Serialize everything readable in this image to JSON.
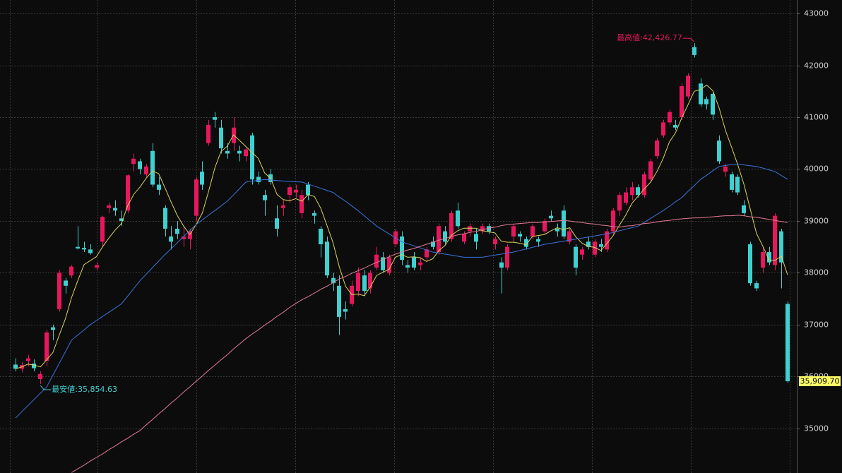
{
  "chart_data": {
    "type": "candlestick",
    "up_color": "#e8175d",
    "down_color": "#3fd0d0",
    "grid": true,
    "ylim": [
      34140,
      43260
    ],
    "yticks": [
      35000,
      36000,
      37000,
      38000,
      39000,
      40000,
      41000,
      42000,
      43000
    ],
    "open": [
      36230,
      36150,
      36300,
      36250,
      35950,
      36300,
      36950,
      37300,
      37850,
      37950,
      38500,
      38480,
      38450,
      38100,
      38600,
      39250,
      39250,
      39050,
      39200,
      40100,
      40150,
      39900,
      40350,
      39700,
      39250,
      38700,
      38850,
      38650,
      38650,
      39100,
      39950,
      40500,
      41000,
      40800,
      40350,
      40500,
      40350,
      40250,
      40650,
      39850,
      39500,
      39900,
      39050,
      39250,
      39500,
      39550,
      39150,
      39700,
      39150,
      38850,
      38600,
      37900,
      37750,
      37300,
      37400,
      37650,
      37950,
      37700,
      38100,
      38300,
      38000,
      38550,
      38700,
      38150,
      38300,
      38150,
      38300,
      38600,
      38400,
      38800,
      38650,
      39200,
      38600,
      38800,
      38750,
      38800,
      38900,
      38550,
      38200,
      38100,
      38700,
      38750,
      38650,
      38700,
      38650,
      38800,
      39100,
      38850,
      39200,
      38600,
      38500,
      38350,
      38600,
      38350,
      38550,
      38450,
      38800,
      39200,
      39350,
      39500,
      39650,
      39500,
      39800,
      40250,
      40650,
      40900,
      40850,
      41000,
      41400,
      42350,
      41650,
      41350,
      41450,
      40550,
      39950,
      39900,
      39850,
      39300,
      38550,
      37800,
      38100,
      38400,
      38150,
      38800,
      37400
    ],
    "high": [
      36350,
      36280,
      36420,
      36330,
      36100,
      36900,
      37000,
      38050,
      37900,
      38150,
      38900,
      38600,
      38550,
      38200,
      39100,
      39350,
      39400,
      39200,
      39900,
      40300,
      40200,
      40100,
      40500,
      39850,
      39300,
      38900,
      39000,
      38900,
      38850,
      39850,
      40150,
      40950,
      41100,
      40950,
      40500,
      41000,
      40450,
      40400,
      40700,
      39950,
      39600,
      40000,
      39300,
      39400,
      39700,
      39700,
      39600,
      39750,
      39200,
      38900,
      38700,
      38000,
      37950,
      37450,
      37850,
      38100,
      38050,
      38050,
      38500,
      38400,
      38350,
      38850,
      38800,
      38250,
      38400,
      38300,
      38500,
      38700,
      38950,
      38900,
      39200,
      39350,
      38800,
      38950,
      38850,
      38950,
      38950,
      38700,
      38300,
      38550,
      38950,
      38800,
      38700,
      38950,
      38700,
      39050,
      39200,
      38950,
      39300,
      38850,
      38550,
      38500,
      38700,
      38650,
      38650,
      38850,
      39250,
      39550,
      39650,
      39750,
      39700,
      39950,
      40200,
      40600,
      40950,
      41150,
      40950,
      41650,
      41850,
      42426.77,
      41750,
      41400,
      41500,
      40650,
      40100,
      39950,
      39900,
      39400,
      38600,
      37850,
      38500,
      38500,
      39150,
      38850,
      37450
    ],
    "low": [
      36100,
      36080,
      36200,
      36100,
      35854.63,
      36200,
      36700,
      37250,
      37600,
      37900,
      38450,
      38400,
      38350,
      38050,
      38500,
      39150,
      39100,
      38900,
      39150,
      39950,
      39900,
      39850,
      39650,
      39500,
      38700,
      38450,
      38650,
      38500,
      38450,
      39000,
      39600,
      40450,
      40800,
      40300,
      40200,
      40350,
      40150,
      40150,
      39700,
      39700,
      39100,
      39700,
      38700,
      39100,
      39350,
      39450,
      39050,
      39400,
      38950,
      38300,
      37900,
      37650,
      36800,
      37100,
      37350,
      37550,
      37550,
      37600,
      38050,
      38000,
      37950,
      38500,
      38150,
      38000,
      38050,
      38050,
      38200,
      38450,
      38350,
      38550,
      38600,
      38850,
      38550,
      38700,
      38450,
      38750,
      38750,
      38450,
      37600,
      38050,
      38600,
      38600,
      38450,
      38650,
      38500,
      38750,
      39000,
      38700,
      38650,
      38550,
      37950,
      38250,
      38450,
      38300,
      38400,
      38400,
      38750,
      39100,
      39300,
      39400,
      39450,
      39450,
      39750,
      40200,
      40600,
      40850,
      40750,
      40950,
      41350,
      42150,
      41200,
      41150,
      40950,
      40100,
      39850,
      39550,
      39500,
      39100,
      37750,
      37650,
      38000,
      38150,
      38050,
      37700,
      35880
    ],
    "close": [
      36150,
      36220,
      36350,
      36160,
      36050,
      36850,
      36900,
      38000,
      37750,
      38120,
      38470,
      38450,
      38380,
      38150,
      39080,
      39300,
      39200,
      39000,
      39880,
      40200,
      40000,
      40050,
      39700,
      39600,
      38850,
      38600,
      38750,
      38700,
      38800,
      39800,
      39700,
      40850,
      40950,
      40400,
      40300,
      40800,
      40300,
      40380,
      39800,
      39750,
      39400,
      39750,
      38850,
      39300,
      39650,
      39600,
      39500,
      39500,
      39100,
      38550,
      37950,
      37800,
      37150,
      37250,
      37750,
      38000,
      37650,
      38000,
      38350,
      38050,
      38300,
      38800,
      38250,
      38100,
      38100,
      38200,
      38450,
      38500,
      38900,
      38600,
      39150,
      38900,
      38750,
      38900,
      38600,
      38900,
      38800,
      38650,
      38100,
      38500,
      38900,
      38700,
      38500,
      38900,
      38600,
      39000,
      39050,
      38800,
      38700,
      38800,
      38100,
      38450,
      38500,
      38600,
      38500,
      38800,
      39200,
      39500,
      39550,
      39650,
      39500,
      39900,
      40150,
      40550,
      40900,
      41100,
      40800,
      41600,
      41800,
      42200,
      41250,
      41250,
      41050,
      40150,
      40050,
      39600,
      39550,
      39150,
      37800,
      37700,
      38400,
      38200,
      39100,
      38200,
      35909.7
    ],
    "moving_averages": [
      {
        "color": "#d9d35a",
        "values": [
          36150,
          36185,
          36240,
          36220,
          36186,
          36326,
          36462,
          36792,
          37110,
          37524,
          37848,
          38158,
          38234,
          38314,
          38506,
          38672,
          38822,
          38946,
          39292,
          39516,
          39656,
          39826,
          39966,
          39910,
          39640,
          39360,
          39100,
          38900,
          38740,
          38930,
          39150,
          39570,
          40020,
          40340,
          40440,
          40660,
          40550,
          40436,
          40316,
          40206,
          39926,
          39816,
          39510,
          39410,
          39390,
          39430,
          39380,
          39510,
          39470,
          39250,
          38920,
          38580,
          38110,
          37740,
          37580,
          37590,
          37560,
          37730,
          37950,
          38010,
          38070,
          38300,
          38350,
          38300,
          38310,
          38290,
          38220,
          38270,
          38430,
          38530,
          38720,
          38810,
          38860,
          38860,
          38860,
          38810,
          38790,
          38770,
          38610,
          38590,
          38590,
          38570,
          38540,
          38700,
          38720,
          38740,
          38810,
          38870,
          38830,
          38870,
          38690,
          38570,
          38510,
          38490,
          38430,
          38570,
          38720,
          38920,
          39110,
          39340,
          39480,
          39620,
          39750,
          39950,
          40200,
          40520,
          40700,
          40990,
          41240,
          41500,
          41530,
          41620,
          41510,
          41180,
          40750,
          40420,
          40080,
          39700,
          39230,
          38760,
          38520,
          38250,
          38240,
          38320,
          37960
        ]
      },
      {
        "color": "#3d72dc",
        "values": [
          35200,
          35320,
          35440,
          35560,
          35680,
          35800,
          36025,
          36250,
          36475,
          36700,
          36800,
          36900,
          37000,
          37080,
          37160,
          37240,
          37320,
          37400,
          37550,
          37700,
          37850,
          37975,
          38100,
          38225,
          38350,
          38465,
          38580,
          38700,
          38815,
          38930,
          39020,
          39110,
          39200,
          39290,
          39380,
          39500,
          39625,
          39750,
          39770,
          39780,
          39800,
          39790,
          39780,
          39770,
          39760,
          39755,
          39750,
          39710,
          39670,
          39630,
          39590,
          39550,
          39460,
          39380,
          39290,
          39200,
          39100,
          39000,
          38900,
          38825,
          38750,
          38675,
          38600,
          38560,
          38520,
          38480,
          38440,
          38400,
          38380,
          38360,
          38340,
          38320,
          38300,
          38300,
          38300,
          38300,
          38320,
          38340,
          38360,
          38380,
          38400,
          38430,
          38460,
          38490,
          38520,
          38550,
          38570,
          38590,
          38610,
          38630,
          38650,
          38670,
          38690,
          38710,
          38730,
          38750,
          38780,
          38810,
          38840,
          38870,
          38900,
          38975,
          39050,
          39125,
          39200,
          39280,
          39370,
          39450,
          39570,
          39680,
          39800,
          39880,
          39970,
          40050,
          40070,
          40085,
          40100,
          40080,
          40065,
          40050,
          40020,
          39985,
          39950,
          39875,
          39800
        ]
      },
      {
        "color": "#e57a94",
        "values": [
          null,
          null,
          null,
          null,
          null,
          null,
          null,
          null,
          null,
          34150,
          34220,
          34290,
          34370,
          34440,
          34510,
          34590,
          34660,
          34740,
          34810,
          34890,
          34960,
          35070,
          35170,
          35280,
          35380,
          35490,
          35590,
          35700,
          35800,
          35910,
          36010,
          36120,
          36220,
          36320,
          36420,
          36530,
          36630,
          36730,
          36820,
          36900,
          36990,
          37070,
          37160,
          37240,
          37330,
          37410,
          37480,
          37540,
          37610,
          37680,
          37740,
          37810,
          37880,
          37930,
          37990,
          38040,
          38090,
          38150,
          38200,
          38250,
          38310,
          38360,
          38400,
          38440,
          38470,
          38510,
          38550,
          38590,
          38630,
          38660,
          38700,
          38730,
          38750,
          38780,
          38800,
          38830,
          38860,
          38880,
          38910,
          38930,
          38940,
          38950,
          38960,
          38970,
          38970,
          38980,
          38990,
          39000,
          39010,
          39000,
          38980,
          38970,
          38950,
          38940,
          38920,
          38910,
          38890,
          38880,
          38900,
          38910,
          38930,
          38950,
          38960,
          38980,
          39000,
          39010,
          39030,
          39040,
          39050,
          39060,
          39060,
          39070,
          39080,
          39090,
          39100,
          39100,
          39110,
          39100,
          39080,
          39070,
          39050,
          39030,
          39010,
          38990,
          38970
        ]
      }
    ],
    "high_label": {
      "value": 42426.77,
      "label": "最高値:42,426.77",
      "color": "#e8175d"
    },
    "low_label": {
      "value": 35854.63,
      "label": "最安値:35,854.63",
      "color": "#3fd0d0"
    },
    "last_price": {
      "value": 35909.7,
      "label": "35,909.70",
      "color": "#ffff66"
    }
  }
}
